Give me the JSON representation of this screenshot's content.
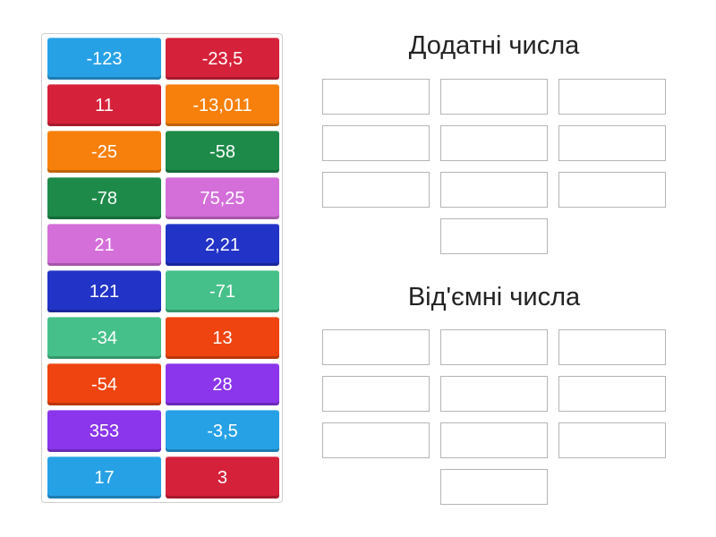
{
  "tiles": [
    {
      "label": "-123",
      "color": "#27a1e6"
    },
    {
      "label": "-23,5",
      "color": "#d6213a"
    },
    {
      "label": "11",
      "color": "#d6213a"
    },
    {
      "label": "-13,011",
      "color": "#f7800c"
    },
    {
      "label": "-25",
      "color": "#f7800c"
    },
    {
      "label": "-58",
      "color": "#1d8a49"
    },
    {
      "label": "-78",
      "color": "#1d8a49"
    },
    {
      "label": "75,25",
      "color": "#d46fda"
    },
    {
      "label": "21",
      "color": "#d46fda"
    },
    {
      "label": "2,21",
      "color": "#2233c7"
    },
    {
      "label": "121",
      "color": "#2233c7"
    },
    {
      "label": "-71",
      "color": "#45c08a"
    },
    {
      "label": "-34",
      "color": "#45c08a"
    },
    {
      "label": "13",
      "color": "#ef440f"
    },
    {
      "label": "-54",
      "color": "#ef440f"
    },
    {
      "label": "28",
      "color": "#8b35ec"
    },
    {
      "label": "353",
      "color": "#8b35ec"
    },
    {
      "label": "-3,5",
      "color": "#27a1e6"
    },
    {
      "label": "17",
      "color": "#27a1e6"
    },
    {
      "label": "3",
      "color": "#d6213a"
    }
  ],
  "groups": {
    "positive": {
      "title": "Додатні числа"
    },
    "negative": {
      "title": "Від'ємні числа"
    }
  }
}
